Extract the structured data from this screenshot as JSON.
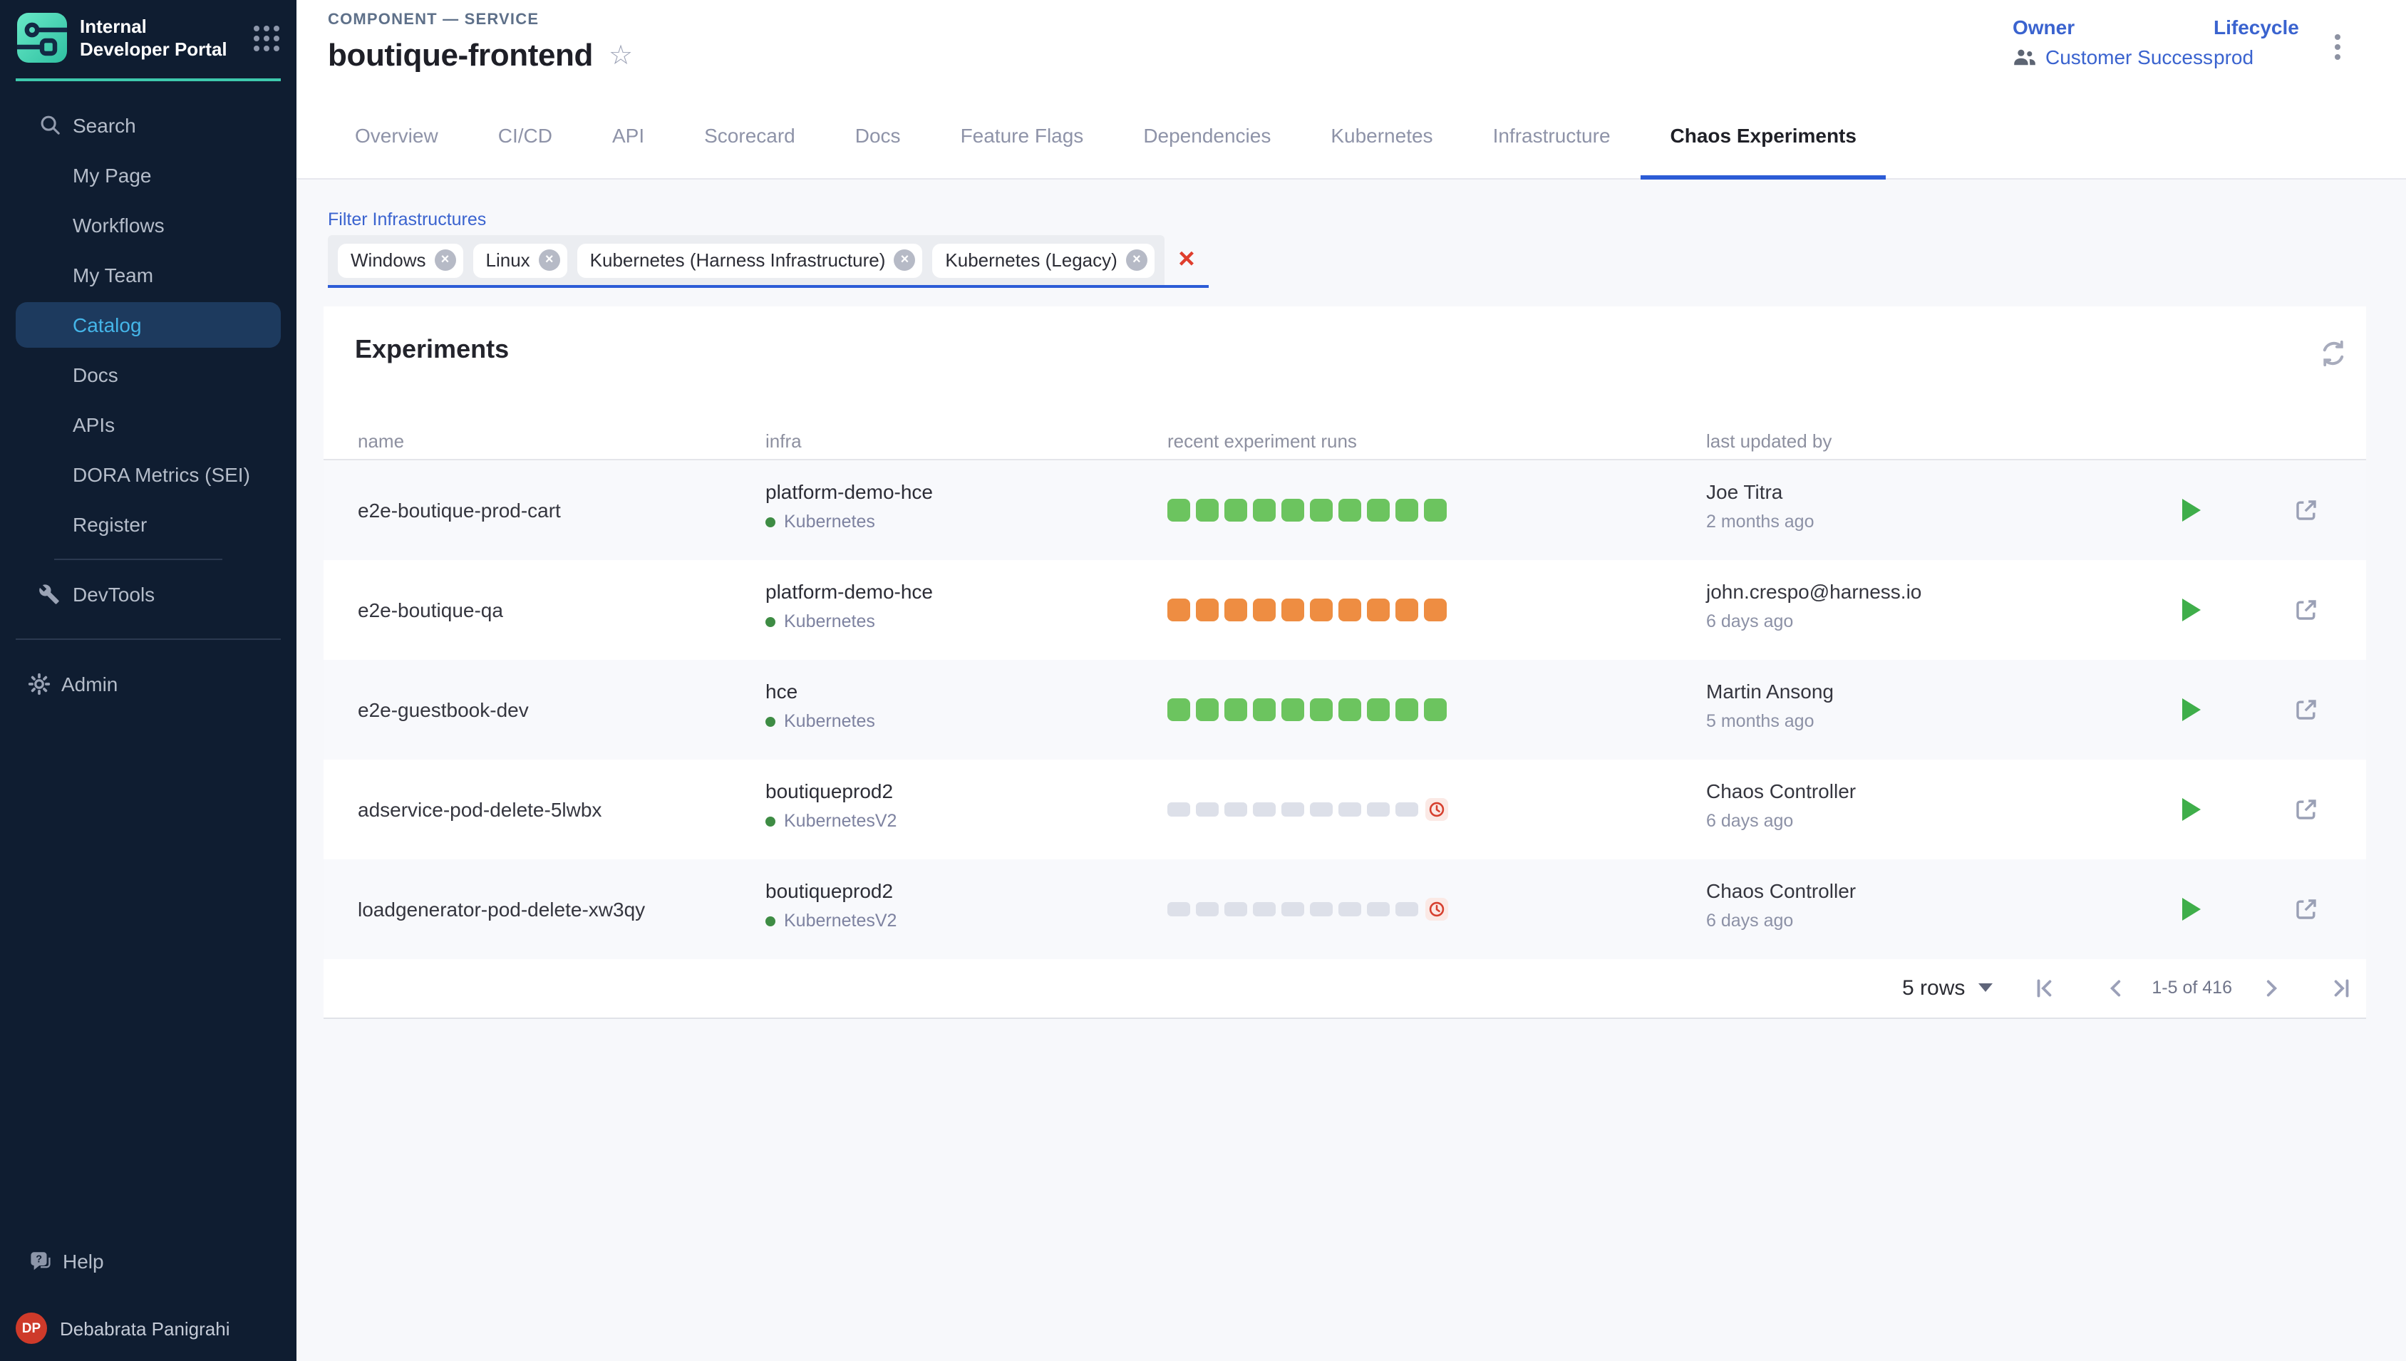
{
  "sidebar": {
    "logo_title": "Internal Developer Portal",
    "nav": [
      {
        "label": "Search",
        "icon": "search"
      },
      {
        "label": "My Page"
      },
      {
        "label": "Workflows"
      },
      {
        "label": "My Team"
      },
      {
        "label": "Catalog",
        "active": true
      },
      {
        "label": "Docs"
      },
      {
        "label": "APIs"
      },
      {
        "label": "DORA Metrics (SEI)"
      },
      {
        "label": "Register"
      }
    ],
    "devtools_label": "DevTools",
    "admin_label": "Admin",
    "help_label": "Help",
    "user": {
      "initials": "DP",
      "name": "Debabrata Panigrahi"
    }
  },
  "header": {
    "eyebrow": "COMPONENT — SERVICE",
    "title": "boutique-frontend",
    "owner_label": "Owner",
    "owner_value": "Customer Success",
    "lifecycle_label": "Lifecycle",
    "lifecycle_value": "prod"
  },
  "tabs": [
    {
      "label": "Overview"
    },
    {
      "label": "CI/CD"
    },
    {
      "label": "API"
    },
    {
      "label": "Scorecard"
    },
    {
      "label": "Docs"
    },
    {
      "label": "Feature Flags"
    },
    {
      "label": "Dependencies"
    },
    {
      "label": "Kubernetes"
    },
    {
      "label": "Infrastructure"
    },
    {
      "label": "Chaos Experiments",
      "active": true
    }
  ],
  "filter": {
    "label": "Filter Infrastructures",
    "chips": [
      "Windows",
      "Linux",
      "Kubernetes (Harness Infrastructure)",
      "Kubernetes (Legacy)"
    ]
  },
  "experiments": {
    "title": "Experiments",
    "columns": [
      "name",
      "infra",
      "recent experiment runs",
      "last updated by"
    ],
    "rows": [
      {
        "name": "e2e-boutique-prod-cart",
        "infra_name": "platform-demo-hce",
        "infra_type": "Kubernetes",
        "runs": {
          "count": 10,
          "color": "green",
          "overdue": false
        },
        "updated_by": "Joe Titra",
        "updated_at": "2 months ago"
      },
      {
        "name": "e2e-boutique-qa",
        "infra_name": "platform-demo-hce",
        "infra_type": "Kubernetes",
        "runs": {
          "count": 10,
          "color": "orange",
          "overdue": false
        },
        "updated_by": "john.crespo@harness.io",
        "updated_at": "6 days ago"
      },
      {
        "name": "e2e-guestbook-dev",
        "infra_name": "hce",
        "infra_type": "Kubernetes",
        "runs": {
          "count": 10,
          "color": "green",
          "overdue": false
        },
        "updated_by": "Martin Ansong",
        "updated_at": "5 months ago"
      },
      {
        "name": "adservice-pod-delete-5lwbx",
        "infra_name": "boutiqueprod2",
        "infra_type": "KubernetesV2",
        "runs": {
          "count": 9,
          "color": "gray",
          "overdue": true
        },
        "updated_by": "Chaos Controller",
        "updated_at": "6 days ago"
      },
      {
        "name": "loadgenerator-pod-delete-xw3qy",
        "infra_name": "boutiqueprod2",
        "infra_type": "KubernetesV2",
        "runs": {
          "count": 9,
          "color": "gray",
          "overdue": true
        },
        "updated_by": "Chaos Controller",
        "updated_at": "6 days ago"
      }
    ],
    "pagination": {
      "rows_per_page": "5 rows",
      "range": "1-5 of 416"
    }
  },
  "colors": {
    "sidebar_bg": "#0f1d31",
    "teal_accent": "#3ec9ad",
    "active_nav_bg": "#1d3a5e",
    "active_nav_text": "#45b5e8",
    "link_blue": "#3a63cf",
    "tab_underline": "#2c5cd6",
    "run_green": "#6cc45f",
    "run_orange": "#ee8d42",
    "run_gray": "#dde0e9",
    "overdue_red": "#d6402f",
    "play_green": "#3fae4a",
    "clear_red": "#df3e2d",
    "avatar_red": "#ce3a2a"
  }
}
